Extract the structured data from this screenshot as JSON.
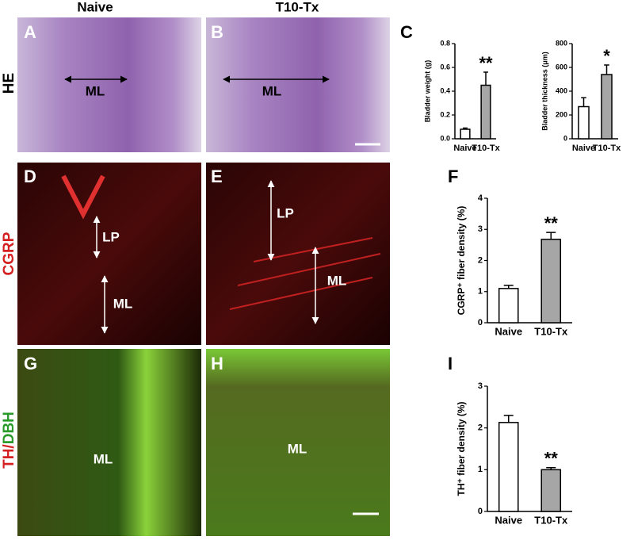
{
  "column_headers": [
    "Naive",
    "T10-Tx"
  ],
  "row_labels": [
    [
      "HE"
    ],
    [
      "CGRP"
    ],
    [
      "TH/",
      "DBH"
    ]
  ],
  "panels": [
    {
      "letter": "A",
      "labels": [
        "ML"
      ]
    },
    {
      "letter": "B",
      "labels": [
        "ML"
      ]
    },
    {
      "letter": "D",
      "labels": [
        "LP",
        "ML"
      ]
    },
    {
      "letter": "E",
      "labels": [
        "LP",
        "ML"
      ]
    },
    {
      "letter": "G",
      "labels": [
        "ML"
      ]
    },
    {
      "letter": "H",
      "labels": [
        "ML"
      ]
    }
  ],
  "chart_letters": [
    "C",
    "F",
    "I"
  ],
  "chart_data": [
    {
      "type": "bar",
      "ylabel": "Bladder weight (g)",
      "categories": [
        "Naive",
        "T10-Tx"
      ],
      "values": [
        0.08,
        0.45
      ],
      "errors": [
        0.01,
        0.11
      ],
      "colors": [
        "#ffffff",
        "#a6a6a6"
      ],
      "annotations": [
        null,
        "**"
      ],
      "ylim": [
        0,
        0.8
      ],
      "yticks": [
        {
          "value": 0,
          "label": "0.0"
        },
        0.2,
        0.4,
        0.6,
        0.8
      ]
    },
    {
      "type": "bar",
      "ylabel": "Bladder thickness (μm)",
      "categories": [
        "Naive",
        "T10-Tx"
      ],
      "values": [
        270,
        540
      ],
      "errors": [
        75,
        80
      ],
      "colors": [
        "#ffffff",
        "#a6a6a6"
      ],
      "annotations": [
        null,
        "*"
      ],
      "ylim": [
        0,
        800
      ],
      "yticks": [
        0,
        200,
        400,
        600,
        800
      ]
    },
    {
      "type": "bar",
      "ylabel": "CGRP⁺ fiber density (%)",
      "categories": [
        "Naive",
        "T10-Tx"
      ],
      "values": [
        1.1,
        2.68
      ],
      "errors": [
        0.1,
        0.22
      ],
      "colors": [
        "#ffffff",
        "#a6a6a6"
      ],
      "annotations": [
        null,
        "**"
      ],
      "ylim": [
        0,
        4
      ],
      "yticks": [
        0,
        1,
        2,
        3,
        4
      ]
    },
    {
      "type": "bar",
      "ylabel": "TH⁺ fiber density (%)",
      "categories": [
        "Naive",
        "T10-Tx"
      ],
      "values": [
        2.13,
        1.0
      ],
      "errors": [
        0.17,
        0.05
      ],
      "colors": [
        "#ffffff",
        "#a6a6a6"
      ],
      "annotations": [
        null,
        "**"
      ],
      "ylim": [
        0,
        3
      ],
      "yticks": [
        0,
        1,
        2,
        3
      ]
    }
  ]
}
